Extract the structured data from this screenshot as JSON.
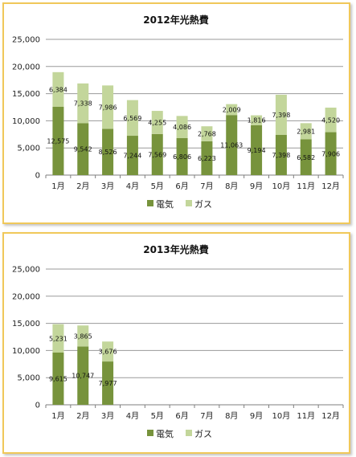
{
  "colors": {
    "electric": "#77933c",
    "gas": "#c3d69b",
    "grid": "#9a9a9a",
    "axis": "#7f7f7f"
  },
  "chart_data": [
    {
      "type": "bar",
      "stacked": true,
      "title": "2012年光熱費",
      "categories": [
        "1月",
        "2月",
        "3月",
        "4月",
        "5月",
        "6月",
        "7月",
        "8月",
        "9月",
        "10月",
        "11月",
        "12月"
      ],
      "series": [
        {
          "name": "電気",
          "values": [
            12575,
            9542,
            8526,
            7244,
            7569,
            6806,
            6223,
            11063,
            9194,
            7398,
            6582,
            7906
          ]
        },
        {
          "name": "ガス",
          "values": [
            6384,
            7338,
            7986,
            6569,
            4255,
            4086,
            2768,
            2009,
            1816,
            7398,
            2981,
            4520
          ]
        }
      ],
      "ylim": [
        0,
        25000
      ],
      "yticks": [
        "0",
        "5,000",
        "10,000",
        "15,000",
        "20,000",
        "25,000"
      ],
      "grid": true,
      "legend": "bottom"
    },
    {
      "type": "bar",
      "stacked": true,
      "title": "2013年光熱費",
      "categories": [
        "1月",
        "2月",
        "3月",
        "4月",
        "5月",
        "6月",
        "7月",
        "8月",
        "9月",
        "10月",
        "11月",
        "12月"
      ],
      "series": [
        {
          "name": "電気",
          "values": [
            9615,
            10747,
            7977,
            null,
            null,
            null,
            null,
            null,
            null,
            null,
            null,
            null
          ]
        },
        {
          "name": "ガス",
          "values": [
            5231,
            3865,
            3676,
            null,
            null,
            null,
            null,
            null,
            null,
            null,
            null,
            null
          ]
        }
      ],
      "ylim": [
        0,
        25000
      ],
      "yticks": [
        "0",
        "5,000",
        "10,000",
        "15,000",
        "20,000",
        "25,000"
      ],
      "grid": true,
      "legend": "bottom"
    }
  ]
}
